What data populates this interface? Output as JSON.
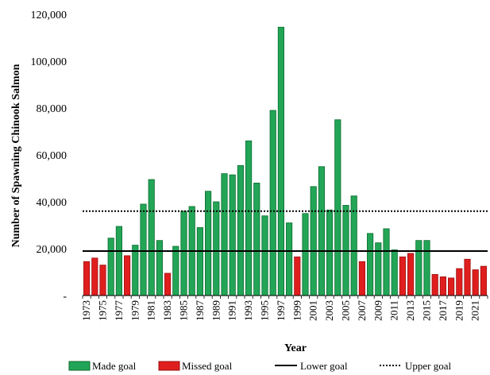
{
  "chart_data": {
    "type": "bar",
    "title": "",
    "xlabel": "Year",
    "ylabel": "Number of Spawning Chinook Salmon",
    "ylim": [
      0,
      120000
    ],
    "yticks": [
      {
        "value": 0,
        "label": "-"
      },
      {
        "value": 20000,
        "label": "20,000"
      },
      {
        "value": 40000,
        "label": "40,000"
      },
      {
        "value": 60000,
        "label": "60,000"
      },
      {
        "value": 80000,
        "label": "80,000"
      },
      {
        "value": 100000,
        "label": "100,000"
      },
      {
        "value": 120000,
        "label": "120,000"
      }
    ],
    "xtick_labels": [
      "1973",
      "1975",
      "1977",
      "1979",
      "1981",
      "1983",
      "1985",
      "1987",
      "1989",
      "1991",
      "1993",
      "1995",
      "1997",
      "1999",
      "2001",
      "2003",
      "2005",
      "2007",
      "2009",
      "2011",
      "2013",
      "2015",
      "2017",
      "2019",
      "2021"
    ],
    "legend_position": "bottom",
    "colors": {
      "made": "#22a556",
      "made_stroke": "#0b6b2f",
      "missed": "#e01e1e",
      "missed_stroke": "#9a1010",
      "line": "#000000"
    },
    "series": [
      {
        "name": "Made goal",
        "data": [
          {
            "year": 1976,
            "value": 24500
          },
          {
            "year": 1977,
            "value": 29500
          },
          {
            "year": 1979,
            "value": 21500
          },
          {
            "year": 1980,
            "value": 39000
          },
          {
            "year": 1981,
            "value": 49500
          },
          {
            "year": 1982,
            "value": 23500
          },
          {
            "year": 1984,
            "value": 21000
          },
          {
            "year": 1985,
            "value": 36000
          },
          {
            "year": 1986,
            "value": 38000
          },
          {
            "year": 1987,
            "value": 29000
          },
          {
            "year": 1988,
            "value": 44500
          },
          {
            "year": 1989,
            "value": 40000
          },
          {
            "year": 1990,
            "value": 52000
          },
          {
            "year": 1991,
            "value": 51500
          },
          {
            "year": 1992,
            "value": 55500
          },
          {
            "year": 1993,
            "value": 66000
          },
          {
            "year": 1994,
            "value": 48000
          },
          {
            "year": 1995,
            "value": 34000
          },
          {
            "year": 1996,
            "value": 79000
          },
          {
            "year": 1997,
            "value": 114500
          },
          {
            "year": 1998,
            "value": 31000
          },
          {
            "year": 2000,
            "value": 35000
          },
          {
            "year": 2001,
            "value": 46500
          },
          {
            "year": 2002,
            "value": 55000
          },
          {
            "year": 2003,
            "value": 36500
          },
          {
            "year": 2004,
            "value": 75000
          },
          {
            "year": 2005,
            "value": 38500
          },
          {
            "year": 2006,
            "value": 42500
          },
          {
            "year": 2008,
            "value": 26500
          },
          {
            "year": 2009,
            "value": 22500
          },
          {
            "year": 2010,
            "value": 28500
          },
          {
            "year": 2011,
            "value": 19500
          },
          {
            "year": 2014,
            "value": 23500
          },
          {
            "year": 2015,
            "value": 23500
          }
        ]
      },
      {
        "name": "Missed goal",
        "data": [
          {
            "year": 1973,
            "value": 14500
          },
          {
            "year": 1974,
            "value": 16000
          },
          {
            "year": 1975,
            "value": 13000
          },
          {
            "year": 1978,
            "value": 17000
          },
          {
            "year": 1983,
            "value": 9500
          },
          {
            "year": 1999,
            "value": 16500
          },
          {
            "year": 2007,
            "value": 14500
          },
          {
            "year": 2012,
            "value": 16500
          },
          {
            "year": 2013,
            "value": 18000
          },
          {
            "year": 2016,
            "value": 9000
          },
          {
            "year": 2017,
            "value": 8000
          },
          {
            "year": 2018,
            "value": 7500
          },
          {
            "year": 2019,
            "value": 11500
          },
          {
            "year": 2020,
            "value": 15500
          },
          {
            "year": 2021,
            "value": 11000
          },
          {
            "year": 2022,
            "value": 12500
          }
        ]
      }
    ],
    "reference_lines": [
      {
        "name": "Lower goal",
        "value": 19000,
        "style": "solid"
      },
      {
        "name": "Upper goal",
        "value": 36000,
        "style": "dotted"
      }
    ]
  }
}
